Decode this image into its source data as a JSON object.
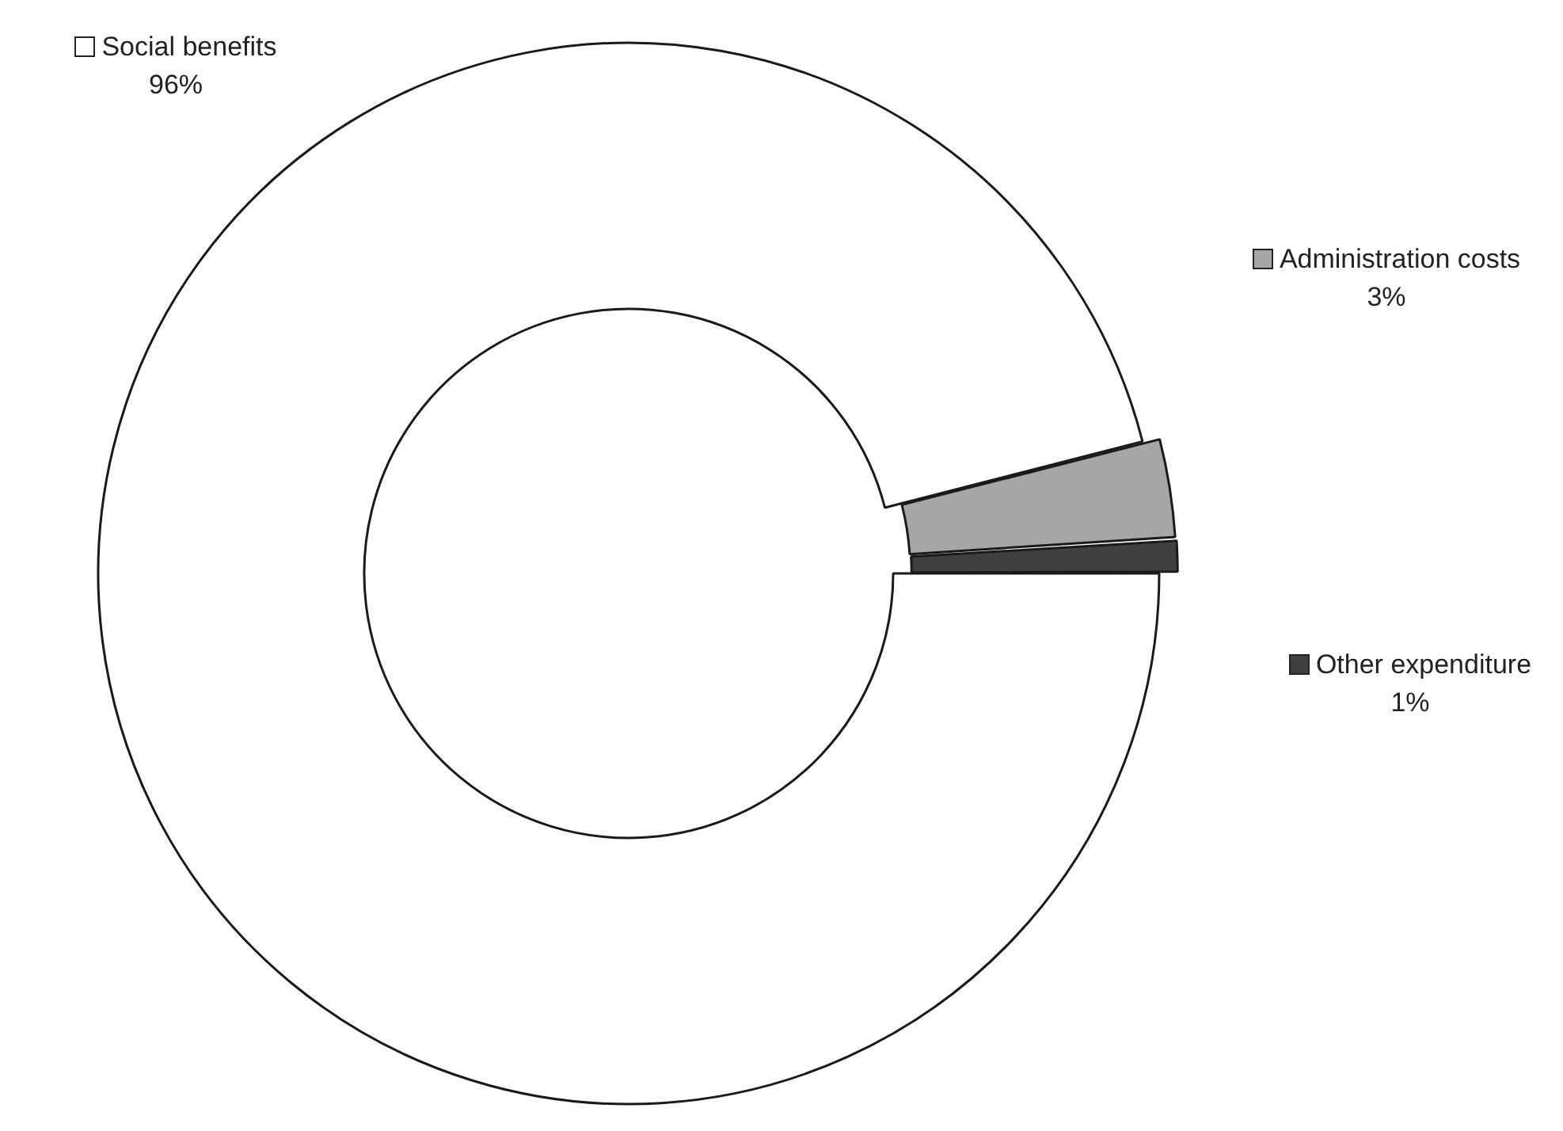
{
  "chart_data": {
    "type": "donut",
    "categories": [
      "Social benefits",
      "Administration costs",
      "Other expenditure"
    ],
    "values": [
      96,
      3,
      1
    ],
    "colors": [
      "#ffffff",
      "#a6a6a6",
      "#404040"
    ],
    "value_labels": [
      "96%",
      "3%",
      "1%"
    ],
    "legend": "right"
  }
}
